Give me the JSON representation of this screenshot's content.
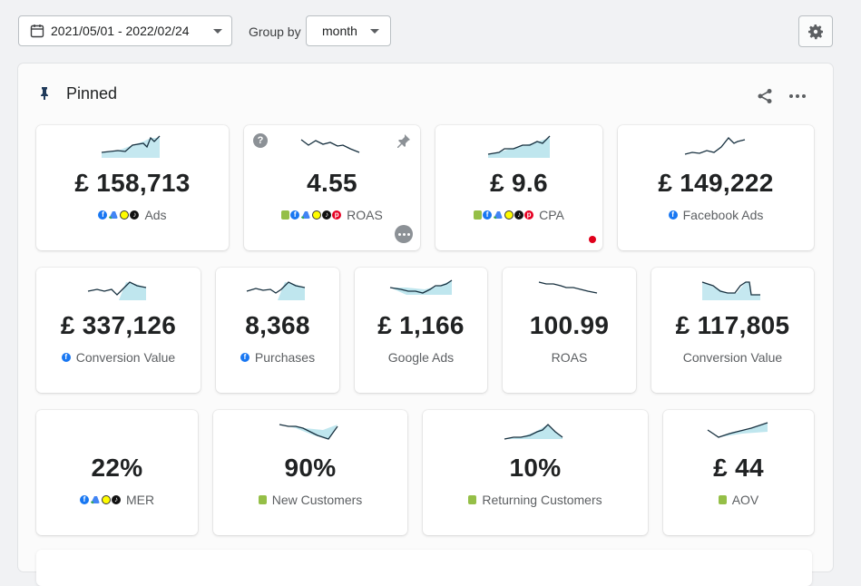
{
  "toolbar": {
    "date_range": "2021/05/01 - 2022/02/24",
    "group_by_label": "Group by",
    "group_by_value": "month"
  },
  "panel": {
    "title": "Pinned"
  },
  "colors": {
    "accent_fill": "#bfe6ee",
    "line": "#17303f",
    "red_dot": "#e0001b"
  },
  "cards": [
    {
      "value": "£ 158,713",
      "label": "Ads",
      "sources": [
        "facebook",
        "google-ads",
        "snapchat",
        "tiktok"
      ]
    },
    {
      "value": "4.55",
      "label": "ROAS",
      "sources": [
        "shopify",
        "facebook",
        "google-ads",
        "snapchat",
        "tiktok",
        "pinterest"
      ]
    },
    {
      "value": "£ 9.6",
      "label": "CPA",
      "sources": [
        "shopify",
        "facebook",
        "google-ads",
        "snapchat",
        "tiktok",
        "pinterest"
      ]
    },
    {
      "value": "£ 149,222",
      "label": "Facebook Ads",
      "sources": [
        "facebook"
      ]
    },
    {
      "value": "£ 337,126",
      "label": "Conversion Value",
      "sources": [
        "facebook"
      ]
    },
    {
      "value": "8,368",
      "label": "Purchases",
      "sources": [
        "facebook"
      ]
    },
    {
      "value": "£ 1,166",
      "label": "Google Ads",
      "sources": []
    },
    {
      "value": "100.99",
      "label": "ROAS",
      "sources": []
    },
    {
      "value": "£ 117,805",
      "label": "Conversion Value",
      "sources": []
    },
    {
      "value": "22%",
      "label": "MER",
      "sources": [
        "facebook",
        "google-ads",
        "snapchat",
        "tiktok"
      ]
    },
    {
      "value": "90%",
      "label": "New Customers",
      "sources": [
        "shopify"
      ]
    },
    {
      "value": "10%",
      "label": "Returning Customers",
      "sources": [
        "shopify"
      ]
    },
    {
      "value": "£ 44",
      "label": "AOV",
      "sources": [
        "shopify"
      ]
    }
  ]
}
